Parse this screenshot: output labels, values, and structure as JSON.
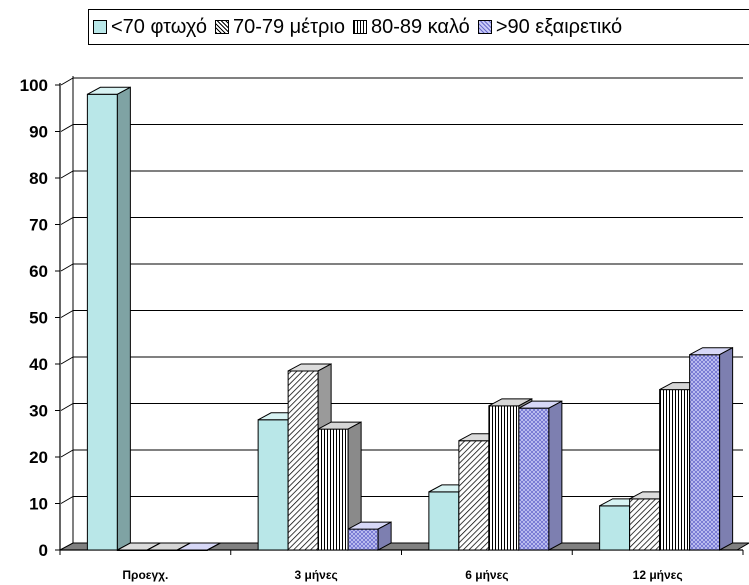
{
  "chart_data": {
    "type": "bar",
    "categories": [
      "Προεγχ.",
      "3 μήνες",
      "6 μήνες",
      "12 μήνες"
    ],
    "series": [
      {
        "name": "<70 φτωχό",
        "values": [
          98,
          28,
          12.5,
          9.5
        ],
        "color": "#b9e7e8",
        "pattern": "solid"
      },
      {
        "name": "70-79 μέτριο",
        "values": [
          0,
          38.5,
          23.5,
          11
        ],
        "color": "#ffffff",
        "pattern": "diagonal"
      },
      {
        "name": "80-89 καλό",
        "values": [
          0,
          26,
          31,
          34.5
        ],
        "color": "#ffffff",
        "pattern": "vertical"
      },
      {
        "name": ">90 εξαιρετικό",
        "values": [
          0,
          4.5,
          30.5,
          42
        ],
        "color": "#b3b5f0",
        "pattern": "crosshatch"
      }
    ],
    "yticks": [
      "0",
      "10",
      "20",
      "30",
      "40",
      "50",
      "60",
      "70",
      "80",
      "90",
      "100"
    ],
    "ylim": [
      0,
      100
    ],
    "grid": true,
    "legend_position": "top"
  }
}
